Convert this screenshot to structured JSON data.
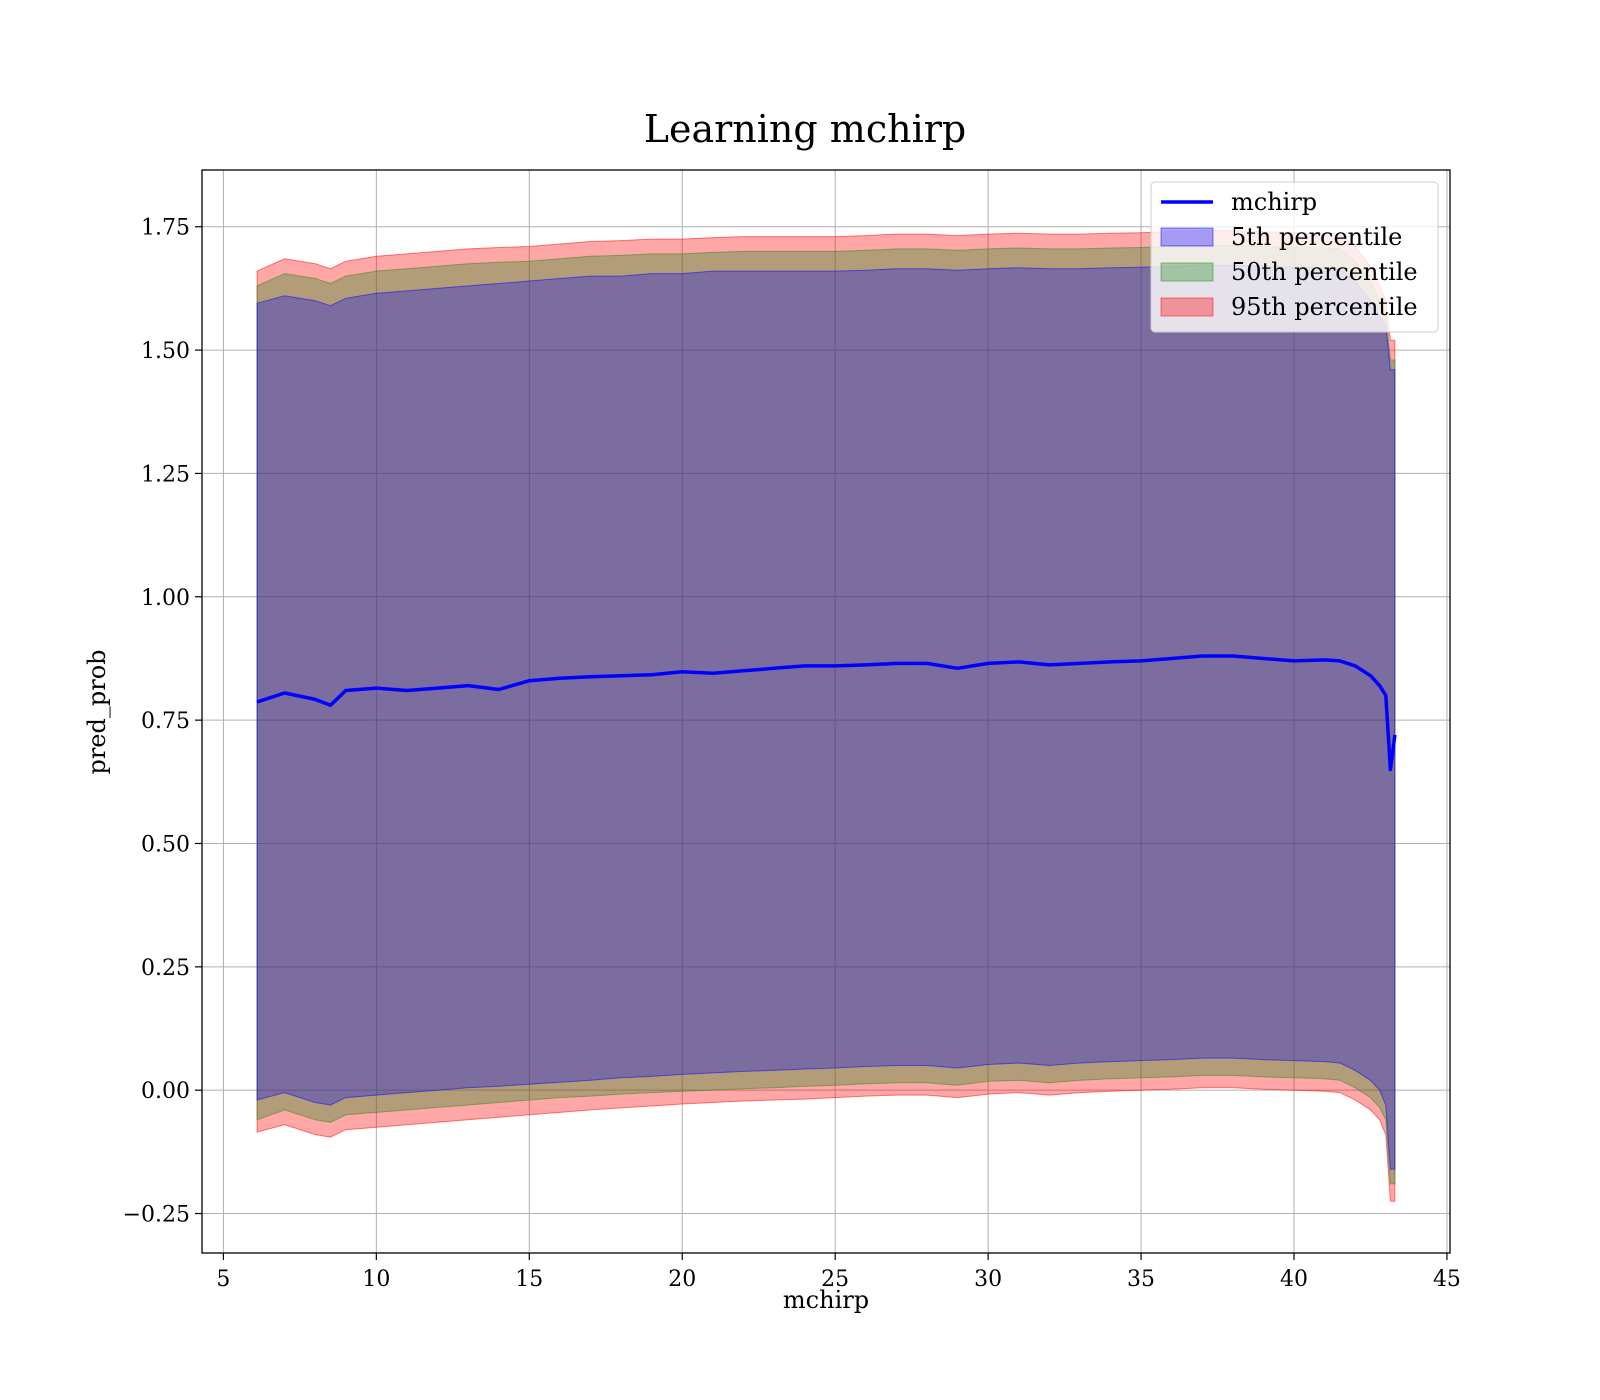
{
  "chart_data": {
    "type": "line",
    "title": "Learning mchirp",
    "xlabel": "mchirp",
    "ylabel": "pred_prob",
    "xlim": [
      4.3,
      45.1
    ],
    "ylim": [
      -0.33,
      1.865
    ],
    "xticks": [
      5,
      10,
      15,
      20,
      25,
      30,
      35,
      40,
      45
    ],
    "yticks": [
      -0.25,
      0.0,
      0.25,
      0.5,
      0.75,
      1.0,
      1.25,
      1.5,
      1.75
    ],
    "ytick_labels": [
      "−0.25",
      "0.00",
      "0.25",
      "0.50",
      "0.75",
      "1.00",
      "1.25",
      "1.50",
      "1.75"
    ],
    "grid": true,
    "legend_position": "top-right",
    "x": [
      6.1,
      7,
      8,
      8.5,
      9,
      10,
      11,
      12,
      13,
      14,
      15,
      16,
      17,
      18,
      19,
      20,
      21,
      22,
      23,
      24,
      25,
      26,
      27,
      28,
      29,
      30,
      31,
      32,
      33,
      34,
      35,
      36,
      37,
      38,
      39,
      40,
      41,
      41.5,
      42,
      42.5,
      42.8,
      43.0,
      43.15,
      43.3
    ],
    "series": [
      {
        "name": "mchirp",
        "kind": "line",
        "color": "#0000ff",
        "values": [
          0.787,
          0.805,
          0.792,
          0.78,
          0.81,
          0.815,
          0.81,
          0.815,
          0.82,
          0.812,
          0.83,
          0.835,
          0.838,
          0.84,
          0.842,
          0.848,
          0.845,
          0.85,
          0.855,
          0.86,
          0.86,
          0.862,
          0.865,
          0.865,
          0.855,
          0.865,
          0.868,
          0.862,
          0.865,
          0.868,
          0.87,
          0.875,
          0.88,
          0.88,
          0.875,
          0.87,
          0.872,
          0.87,
          0.86,
          0.84,
          0.82,
          0.8,
          0.65,
          0.72
        ]
      },
      {
        "name": "5th percentile",
        "kind": "band",
        "color": "#0000ff",
        "upper": [
          1.595,
          1.61,
          1.6,
          1.59,
          1.605,
          1.615,
          1.62,
          1.625,
          1.63,
          1.635,
          1.64,
          1.645,
          1.65,
          1.65,
          1.655,
          1.655,
          1.66,
          1.66,
          1.66,
          1.66,
          1.66,
          1.662,
          1.665,
          1.665,
          1.662,
          1.665,
          1.667,
          1.665,
          1.665,
          1.667,
          1.668,
          1.67,
          1.672,
          1.672,
          1.67,
          1.668,
          1.668,
          1.665,
          1.64,
          1.6,
          1.57,
          1.55,
          1.46,
          1.46
        ],
        "lower": [
          -0.02,
          -0.005,
          -0.025,
          -0.03,
          -0.015,
          -0.01,
          -0.005,
          0.0,
          0.005,
          0.008,
          0.012,
          0.016,
          0.02,
          0.025,
          0.028,
          0.032,
          0.035,
          0.038,
          0.04,
          0.043,
          0.045,
          0.048,
          0.05,
          0.05,
          0.045,
          0.052,
          0.055,
          0.05,
          0.055,
          0.058,
          0.06,
          0.062,
          0.065,
          0.065,
          0.062,
          0.06,
          0.058,
          0.055,
          0.04,
          0.02,
          0.0,
          -0.03,
          -0.16,
          -0.16
        ]
      },
      {
        "name": "50th percentile",
        "kind": "band",
        "color": "#228b22",
        "upper": [
          1.63,
          1.655,
          1.645,
          1.635,
          1.65,
          1.66,
          1.665,
          1.67,
          1.675,
          1.678,
          1.68,
          1.685,
          1.69,
          1.692,
          1.695,
          1.695,
          1.698,
          1.7,
          1.7,
          1.7,
          1.7,
          1.702,
          1.705,
          1.705,
          1.702,
          1.705,
          1.707,
          1.705,
          1.705,
          1.707,
          1.708,
          1.71,
          1.712,
          1.712,
          1.71,
          1.708,
          1.707,
          1.705,
          1.68,
          1.64,
          1.6,
          1.57,
          1.48,
          1.48
        ],
        "lower": [
          -0.06,
          -0.04,
          -0.06,
          -0.065,
          -0.05,
          -0.045,
          -0.04,
          -0.035,
          -0.03,
          -0.025,
          -0.02,
          -0.015,
          -0.012,
          -0.008,
          -0.005,
          -0.002,
          0.0,
          0.003,
          0.005,
          0.008,
          0.01,
          0.013,
          0.015,
          0.015,
          0.01,
          0.018,
          0.02,
          0.015,
          0.02,
          0.023,
          0.025,
          0.027,
          0.03,
          0.03,
          0.027,
          0.025,
          0.023,
          0.02,
          0.005,
          -0.015,
          -0.035,
          -0.06,
          -0.19,
          -0.19
        ]
      },
      {
        "name": "95th percentile",
        "kind": "band",
        "color": "#ff0000",
        "upper": [
          1.66,
          1.685,
          1.675,
          1.665,
          1.68,
          1.69,
          1.695,
          1.7,
          1.705,
          1.708,
          1.71,
          1.715,
          1.72,
          1.722,
          1.725,
          1.725,
          1.728,
          1.73,
          1.73,
          1.73,
          1.73,
          1.732,
          1.735,
          1.735,
          1.732,
          1.735,
          1.737,
          1.735,
          1.735,
          1.737,
          1.738,
          1.74,
          1.742,
          1.742,
          1.74,
          1.738,
          1.737,
          1.735,
          1.71,
          1.67,
          1.63,
          1.6,
          1.52,
          1.52
        ],
        "lower": [
          -0.085,
          -0.07,
          -0.09,
          -0.095,
          -0.08,
          -0.075,
          -0.07,
          -0.065,
          -0.06,
          -0.055,
          -0.05,
          -0.045,
          -0.04,
          -0.036,
          -0.032,
          -0.028,
          -0.025,
          -0.022,
          -0.02,
          -0.018,
          -0.015,
          -0.012,
          -0.01,
          -0.01,
          -0.015,
          -0.008,
          -0.005,
          -0.01,
          -0.005,
          -0.002,
          0.0,
          0.002,
          0.005,
          0.005,
          0.002,
          0.0,
          -0.002,
          -0.005,
          -0.02,
          -0.04,
          -0.06,
          -0.09,
          -0.225,
          -0.225
        ]
      }
    ]
  }
}
